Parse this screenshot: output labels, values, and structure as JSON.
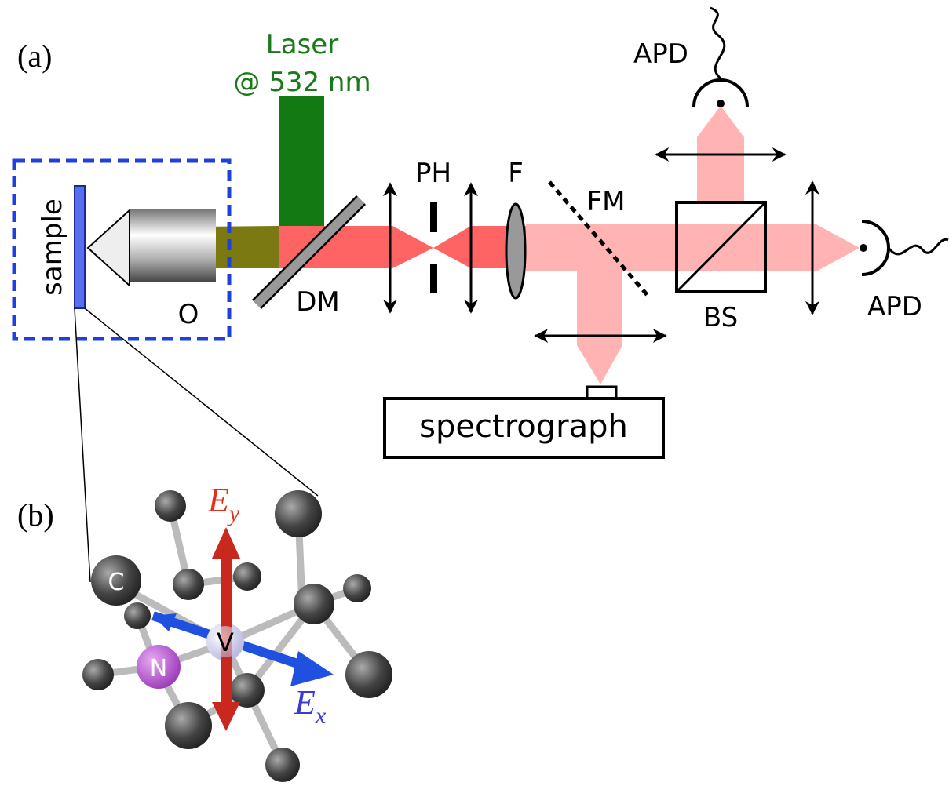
{
  "panel_a": {
    "label": "(a)",
    "laser": {
      "line1": "Laser",
      "line2": "@ 532 nm"
    },
    "sample": "sample",
    "objective": "O",
    "dichroic_mirror": "DM",
    "pinhole": "PH",
    "filter": "F",
    "flip_mirror": "FM",
    "beam_splitter": "BS",
    "detector_top": "APD",
    "detector_right": "APD",
    "spectrograph": "spectrograph"
  },
  "panel_b": {
    "label": "(b)",
    "field_y": {
      "symbol": "E",
      "subscript": "y"
    },
    "field_x": {
      "symbol": "E",
      "subscript": "x"
    },
    "atoms": {
      "carbon": "C",
      "vacancy": "V",
      "nitrogen": "N"
    }
  }
}
